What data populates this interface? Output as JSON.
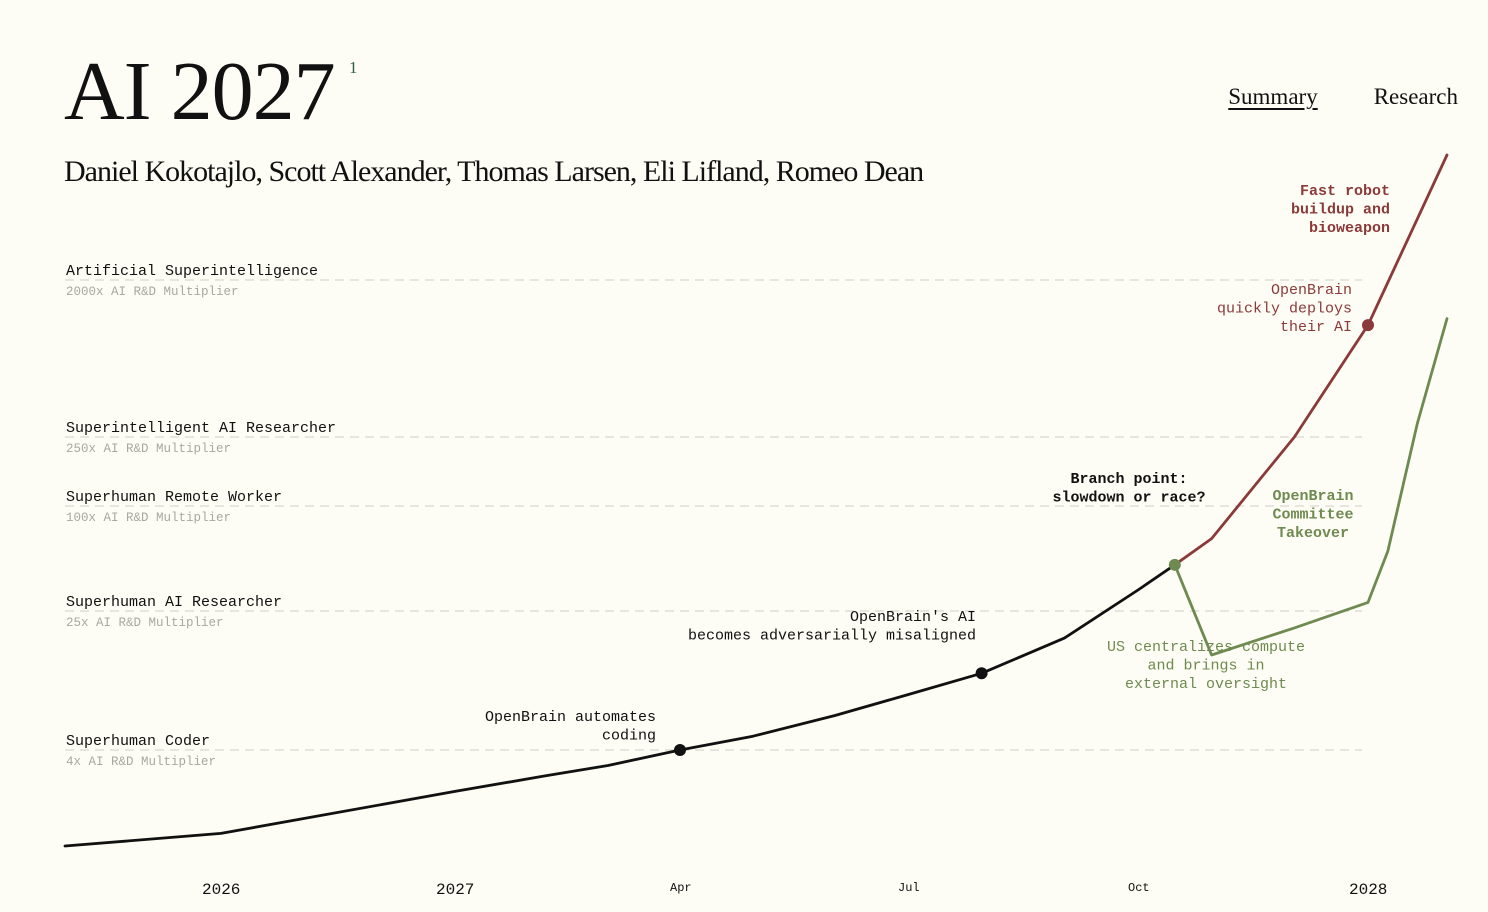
{
  "header": {
    "title": "AI 2027",
    "footnote": "1",
    "authors": "Daniel Kokotajlo, Scott Alexander, Thomas Larsen, Eli Lifland, Romeo Dean"
  },
  "nav": {
    "items": [
      {
        "label": "Summary",
        "active": true
      },
      {
        "label": "Research",
        "active": false
      }
    ]
  },
  "chart_data": {
    "type": "line",
    "title": "",
    "xlabel": "",
    "ylabel": "",
    "grid": false,
    "legend": "none",
    "colors": {
      "main": "#111111",
      "race": "#8b3a3a",
      "slowdown": "#6f8a50",
      "milestone_line": "#d8d8d0",
      "multiplier_text": "#a8a8a0"
    },
    "x_ticks": [
      {
        "label": "2026",
        "x": 2026.0,
        "style": "year"
      },
      {
        "label": "2027",
        "x": 2027.0,
        "style": "year"
      },
      {
        "label": "Apr",
        "x": 2027.25,
        "style": "month"
      },
      {
        "label": "Jul",
        "x": 2027.5,
        "style": "month"
      },
      {
        "label": "Oct",
        "x": 2027.75,
        "style": "month"
      },
      {
        "label": "2028",
        "x": 2028.0,
        "style": "year"
      }
    ],
    "xlim": [
      2025.42,
      2028.08
    ],
    "ylabel_scale": "AI R&D progress multiplier (log)",
    "ylim": [
      0.75,
      5000
    ],
    "milestones": [
      {
        "name": "Superhuman Coder",
        "multiplier_label": "4x AI R&D Multiplier",
        "value": 4
      },
      {
        "name": "Superhuman AI Researcher",
        "multiplier_label": "25x AI R&D Multiplier",
        "value": 25
      },
      {
        "name": "Superhuman Remote Worker",
        "multiplier_label": "100x AI R&D Multiplier",
        "value": 100
      },
      {
        "name": "Superintelligent AI Researcher",
        "multiplier_label": "250x AI R&D Multiplier",
        "value": 250
      },
      {
        "name": "Artificial Superintelligence",
        "multiplier_label": "2000x AI R&D Multiplier",
        "value": 2000
      }
    ],
    "series": [
      {
        "id": "main",
        "x": [
          2025.42,
          2026.0,
          2027.0,
          2027.1,
          2027.17,
          2027.25,
          2027.33,
          2027.42,
          2027.5,
          2027.58,
          2027.67,
          2027.75,
          2027.79
        ],
        "y": [
          1.0,
          1.2,
          2.2,
          2.75,
          3.2,
          4.0,
          4.8,
          6.3,
          8.3,
          11.0,
          17.5,
          33,
          46
        ]
      },
      {
        "id": "race",
        "x": [
          2027.79,
          2027.83,
          2027.92,
          2028.0,
          2028.08
        ],
        "y": [
          46,
          65,
          250,
          1100,
          9000
        ]
      },
      {
        "id": "slowdown",
        "x": [
          2027.79,
          2027.83,
          2027.92,
          2028.0,
          2028.02,
          2028.05,
          2028.08
        ],
        "y": [
          46,
          14,
          20,
          28,
          55,
          300,
          1200
        ]
      }
    ],
    "points": [
      {
        "series": "main",
        "x": 2027.25,
        "y": 4.0
      },
      {
        "series": "main",
        "x": 2027.58,
        "y": 11.0
      },
      {
        "series": "slowdown",
        "x": 2027.79,
        "y": 46
      },
      {
        "series": "race",
        "x": 2028.0,
        "y": 1100
      }
    ],
    "annotations": [
      {
        "id": "automates",
        "lines": [
          "OpenBrain automates",
          "coding"
        ],
        "color": "main",
        "bold": false
      },
      {
        "id": "misaligned",
        "lines": [
          "OpenBrain's AI",
          "becomes adversarially misaligned"
        ],
        "color": "main",
        "bold": false
      },
      {
        "id": "branch",
        "lines": [
          "Branch point:",
          "slowdown or race?"
        ],
        "color": "main",
        "bold": true
      },
      {
        "id": "robot",
        "lines": [
          "Fast robot",
          "buildup and",
          "bioweapon"
        ],
        "color": "race",
        "bold": true
      },
      {
        "id": "deploys",
        "lines": [
          "OpenBrain",
          "quickly deploys",
          "their AI"
        ],
        "color": "race",
        "bold": false
      },
      {
        "id": "committee",
        "lines": [
          "OpenBrain",
          "Committee",
          "Takeover"
        ],
        "color": "slowdown",
        "bold": true
      },
      {
        "id": "centralizes",
        "lines": [
          "US centralizes compute",
          "and brings in",
          "external oversight"
        ],
        "color": "slowdown",
        "bold": false
      }
    ]
  }
}
